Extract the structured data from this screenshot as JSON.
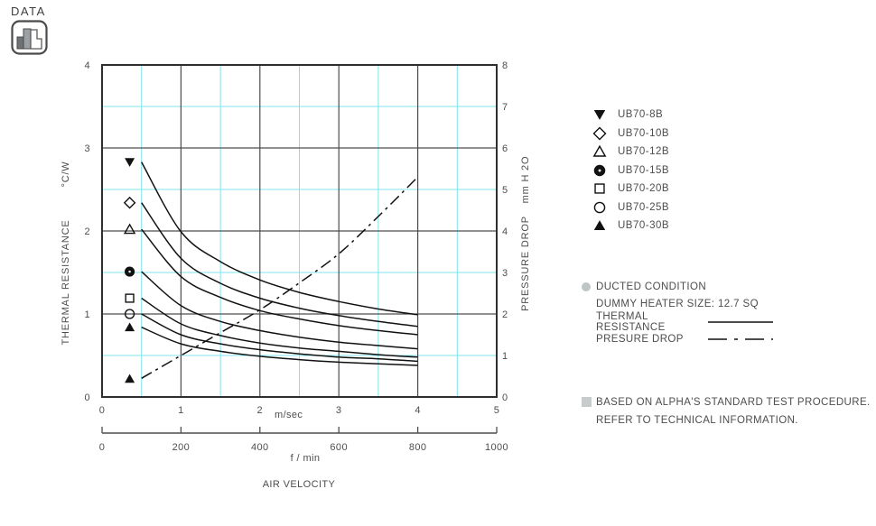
{
  "header": {
    "data_label": "DATA"
  },
  "colors": {
    "background": "#ffffff",
    "grid_minor": "#7de4ee",
    "grid_major": "#4d4d4d",
    "border": "#2e2e2e",
    "curve": "#111111",
    "text": "#4d4d4d",
    "bullet_gray": "#bfc4c6"
  },
  "chart_data": {
    "type": "line",
    "x_axis": {
      "primary_label": "m/sec",
      "primary_range": [
        0,
        5
      ],
      "primary_ticks": [
        0,
        1,
        2,
        3,
        4,
        5
      ],
      "secondary_label": "f / min",
      "secondary_range": [
        0,
        1000
      ],
      "secondary_ticks": [
        0,
        200,
        400,
        600,
        800,
        1000
      ],
      "axis_title": "AIR VELOCITY"
    },
    "y_left_axis": {
      "title_unit": "°C/W",
      "title_name": "THERMAL RESISTANCE",
      "range": [
        0,
        4
      ],
      "ticks": [
        0,
        1,
        2,
        3,
        4
      ],
      "minor_step": 0.5
    },
    "y_right_axis": {
      "title_unit": "mm H 2O",
      "title_name": "PRESSURE DROP",
      "range": [
        0,
        8
      ],
      "ticks": [
        0,
        1,
        2,
        3,
        4,
        5,
        6,
        7,
        8
      ],
      "minor_step": 1
    },
    "sample_x": [
      0.5,
      1.0,
      1.5,
      2.0,
      2.5,
      3.0,
      3.5,
      4.0
    ],
    "marker_column_x": 0.35,
    "series": [
      {
        "name": "UB70-8B",
        "marker": "triangle-down-filled",
        "axis": "left",
        "values": [
          2.83,
          1.99,
          1.63,
          1.41,
          1.26,
          1.15,
          1.06,
          0.99
        ]
      },
      {
        "name": "UB70-10B",
        "marker": "diamond-open",
        "axis": "left",
        "values": [
          2.34,
          1.67,
          1.37,
          1.19,
          1.07,
          0.98,
          0.91,
          0.85
        ]
      },
      {
        "name": "UB70-12B",
        "marker": "triangle-up-open",
        "axis": "left",
        "values": [
          2.02,
          1.45,
          1.2,
          1.04,
          0.94,
          0.86,
          0.8,
          0.75
        ]
      },
      {
        "name": "UB70-15B",
        "marker": "circle-donut",
        "axis": "left",
        "values": [
          1.51,
          1.1,
          0.91,
          0.8,
          0.72,
          0.66,
          0.62,
          0.58
        ]
      },
      {
        "name": "UB70-20B",
        "marker": "square-open",
        "axis": "left",
        "values": [
          1.19,
          0.88,
          0.74,
          0.65,
          0.59,
          0.55,
          0.51,
          0.48
        ]
      },
      {
        "name": "UB70-25B",
        "marker": "circle-open",
        "axis": "left",
        "values": [
          1.0,
          0.75,
          0.64,
          0.57,
          0.52,
          0.48,
          0.46,
          0.43
        ]
      },
      {
        "name": "UB70-30B",
        "marker": "triangle-up-filled",
        "axis": "left",
        "values": [
          0.84,
          0.64,
          0.55,
          0.49,
          0.45,
          0.42,
          0.4,
          0.38
        ]
      }
    ],
    "pressure_drop": {
      "axis": "right",
      "line_style": "dash-dot",
      "marker": "triangle-up-filled",
      "marker_y_left_scale": 0.22,
      "values": [
        0.45,
        1.0,
        1.55,
        2.1,
        2.75,
        3.45,
        4.35,
        5.3
      ]
    }
  },
  "conditions": {
    "line1": "DUCTED CONDITION",
    "line2": "DUMMY HEATER SIZE: 12.7 SQ",
    "thermal_label": "THERMAL RESISTANCE",
    "pressure_label": "PRESURE DROP"
  },
  "footnote": {
    "line1": "BASED ON ALPHA'S STANDARD TEST PROCEDURE.",
    "line2": "REFER TO TECHNICAL INFORMATION."
  }
}
